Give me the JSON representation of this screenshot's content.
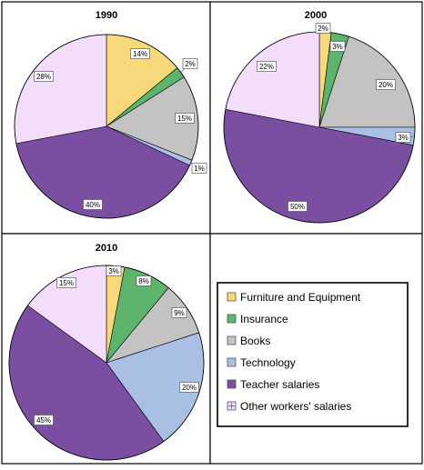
{
  "chart_data": [
    {
      "type": "pie",
      "title": "1990",
      "categories": [
        "Furniture and Equipment",
        "Insurance",
        "Books",
        "Technology",
        "Teacher salaries",
        "Other workers' salaries"
      ],
      "values": [
        14,
        2,
        15,
        1,
        40,
        28
      ],
      "labels": [
        "14%",
        "2%",
        "15%",
        "1%",
        "40%",
        "28%"
      ]
    },
    {
      "type": "pie",
      "title": "2000",
      "categories": [
        "Furniture and Equipment",
        "Insurance",
        "Books",
        "Technology",
        "Teacher salaries",
        "Other workers' salaries"
      ],
      "values": [
        2,
        3,
        20,
        3,
        50,
        22
      ],
      "labels": [
        "2%",
        "3%",
        "20%",
        "3%",
        "50%",
        "22%"
      ]
    },
    {
      "type": "pie",
      "title": "2010",
      "categories": [
        "Furniture and Equipment",
        "Insurance",
        "Books",
        "Technology",
        "Teacher salaries",
        "Other workers' salaries"
      ],
      "values": [
        3,
        8,
        9,
        20,
        45,
        15
      ],
      "labels": [
        "3%",
        "8%",
        "9%",
        "20%",
        "45%",
        "15%"
      ]
    }
  ],
  "legend": {
    "items": [
      {
        "label": "Furniture and Equipment",
        "color": "#f7d97c"
      },
      {
        "label": "Insurance",
        "color": "#5cb46d"
      },
      {
        "label": "Books",
        "color": "#c3c3c3"
      },
      {
        "label": "Technology",
        "color": "#a9bfe3"
      },
      {
        "label": "Teacher salaries",
        "color": "#7a4ea0"
      },
      {
        "label": "Other workers' salaries",
        "color": "#f3ddfa"
      }
    ]
  },
  "colors": [
    "#f7d97c",
    "#5cb46d",
    "#c3c3c3",
    "#a9bfe3",
    "#7a4ea0",
    "#f3ddfa"
  ]
}
